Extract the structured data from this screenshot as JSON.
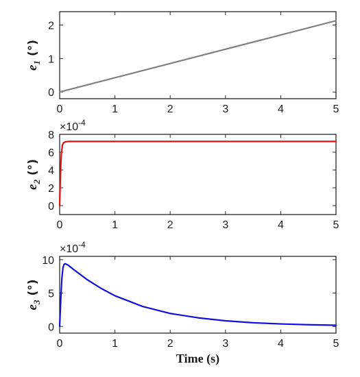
{
  "chart_data": [
    {
      "type": "line",
      "ylabel": {
        "symbol": "e",
        "subscript": "1",
        "unit": "(°)"
      },
      "xlabel": "",
      "multiplier": "",
      "xlim": [
        0,
        5
      ],
      "ylim": [
        -0.2,
        2.4
      ],
      "xticks": [
        "0",
        "1",
        "2",
        "3",
        "4",
        "5"
      ],
      "yticks": [
        "0",
        "1",
        "2"
      ],
      "ytick_values": [
        0,
        1,
        2
      ],
      "grid": false,
      "series": [
        {
          "color": "#808080",
          "x": [
            0,
            5
          ],
          "y": [
            0,
            2.13
          ]
        }
      ]
    },
    {
      "type": "line",
      "ylabel": {
        "symbol": "e",
        "subscript": "2",
        "unit": "(°)"
      },
      "xlabel": "",
      "multiplier": "×10",
      "multiplier_exp": "-4",
      "xlim": [
        0,
        5
      ],
      "ylim": [
        -1,
        8
      ],
      "xticks": [
        "0",
        "1",
        "2",
        "3",
        "4",
        "5"
      ],
      "yticks": [
        "0",
        "2",
        "4",
        "6",
        "8"
      ],
      "ytick_values": [
        0,
        2,
        4,
        6,
        8
      ],
      "grid": false,
      "series": [
        {
          "color": "#e01010",
          "x": [
            0,
            0.01,
            0.02,
            0.03,
            0.05,
            0.07,
            0.1,
            0.15,
            5
          ],
          "y": [
            0,
            2.5,
            4.5,
            5.8,
            6.8,
            7.05,
            7.15,
            7.2,
            7.2
          ]
        }
      ]
    },
    {
      "type": "line",
      "ylabel": {
        "symbol": "e",
        "subscript": "3",
        "unit": "(°)"
      },
      "xlabel": "Time (s)",
      "multiplier": "×10",
      "multiplier_exp": "-4",
      "xlim": [
        0,
        5
      ],
      "ylim": [
        -1,
        10.5
      ],
      "xticks": [
        "0",
        "1",
        "2",
        "3",
        "4",
        "5"
      ],
      "yticks": [
        "0",
        "5",
        "10"
      ],
      "ytick_values": [
        0,
        5,
        10
      ],
      "grid": false,
      "series": [
        {
          "color": "#1010e0",
          "x": [
            0,
            0.02,
            0.04,
            0.06,
            0.08,
            0.1,
            0.15,
            0.25,
            0.5,
            0.75,
            1,
            1.5,
            2,
            2.5,
            3,
            3.5,
            4,
            4.5,
            5
          ],
          "y": [
            0,
            4.0,
            7.2,
            8.8,
            9.3,
            9.4,
            9.2,
            8.55,
            7.0,
            5.7,
            4.6,
            3.0,
            1.95,
            1.3,
            0.85,
            0.55,
            0.38,
            0.26,
            0.18
          ]
        }
      ]
    }
  ]
}
